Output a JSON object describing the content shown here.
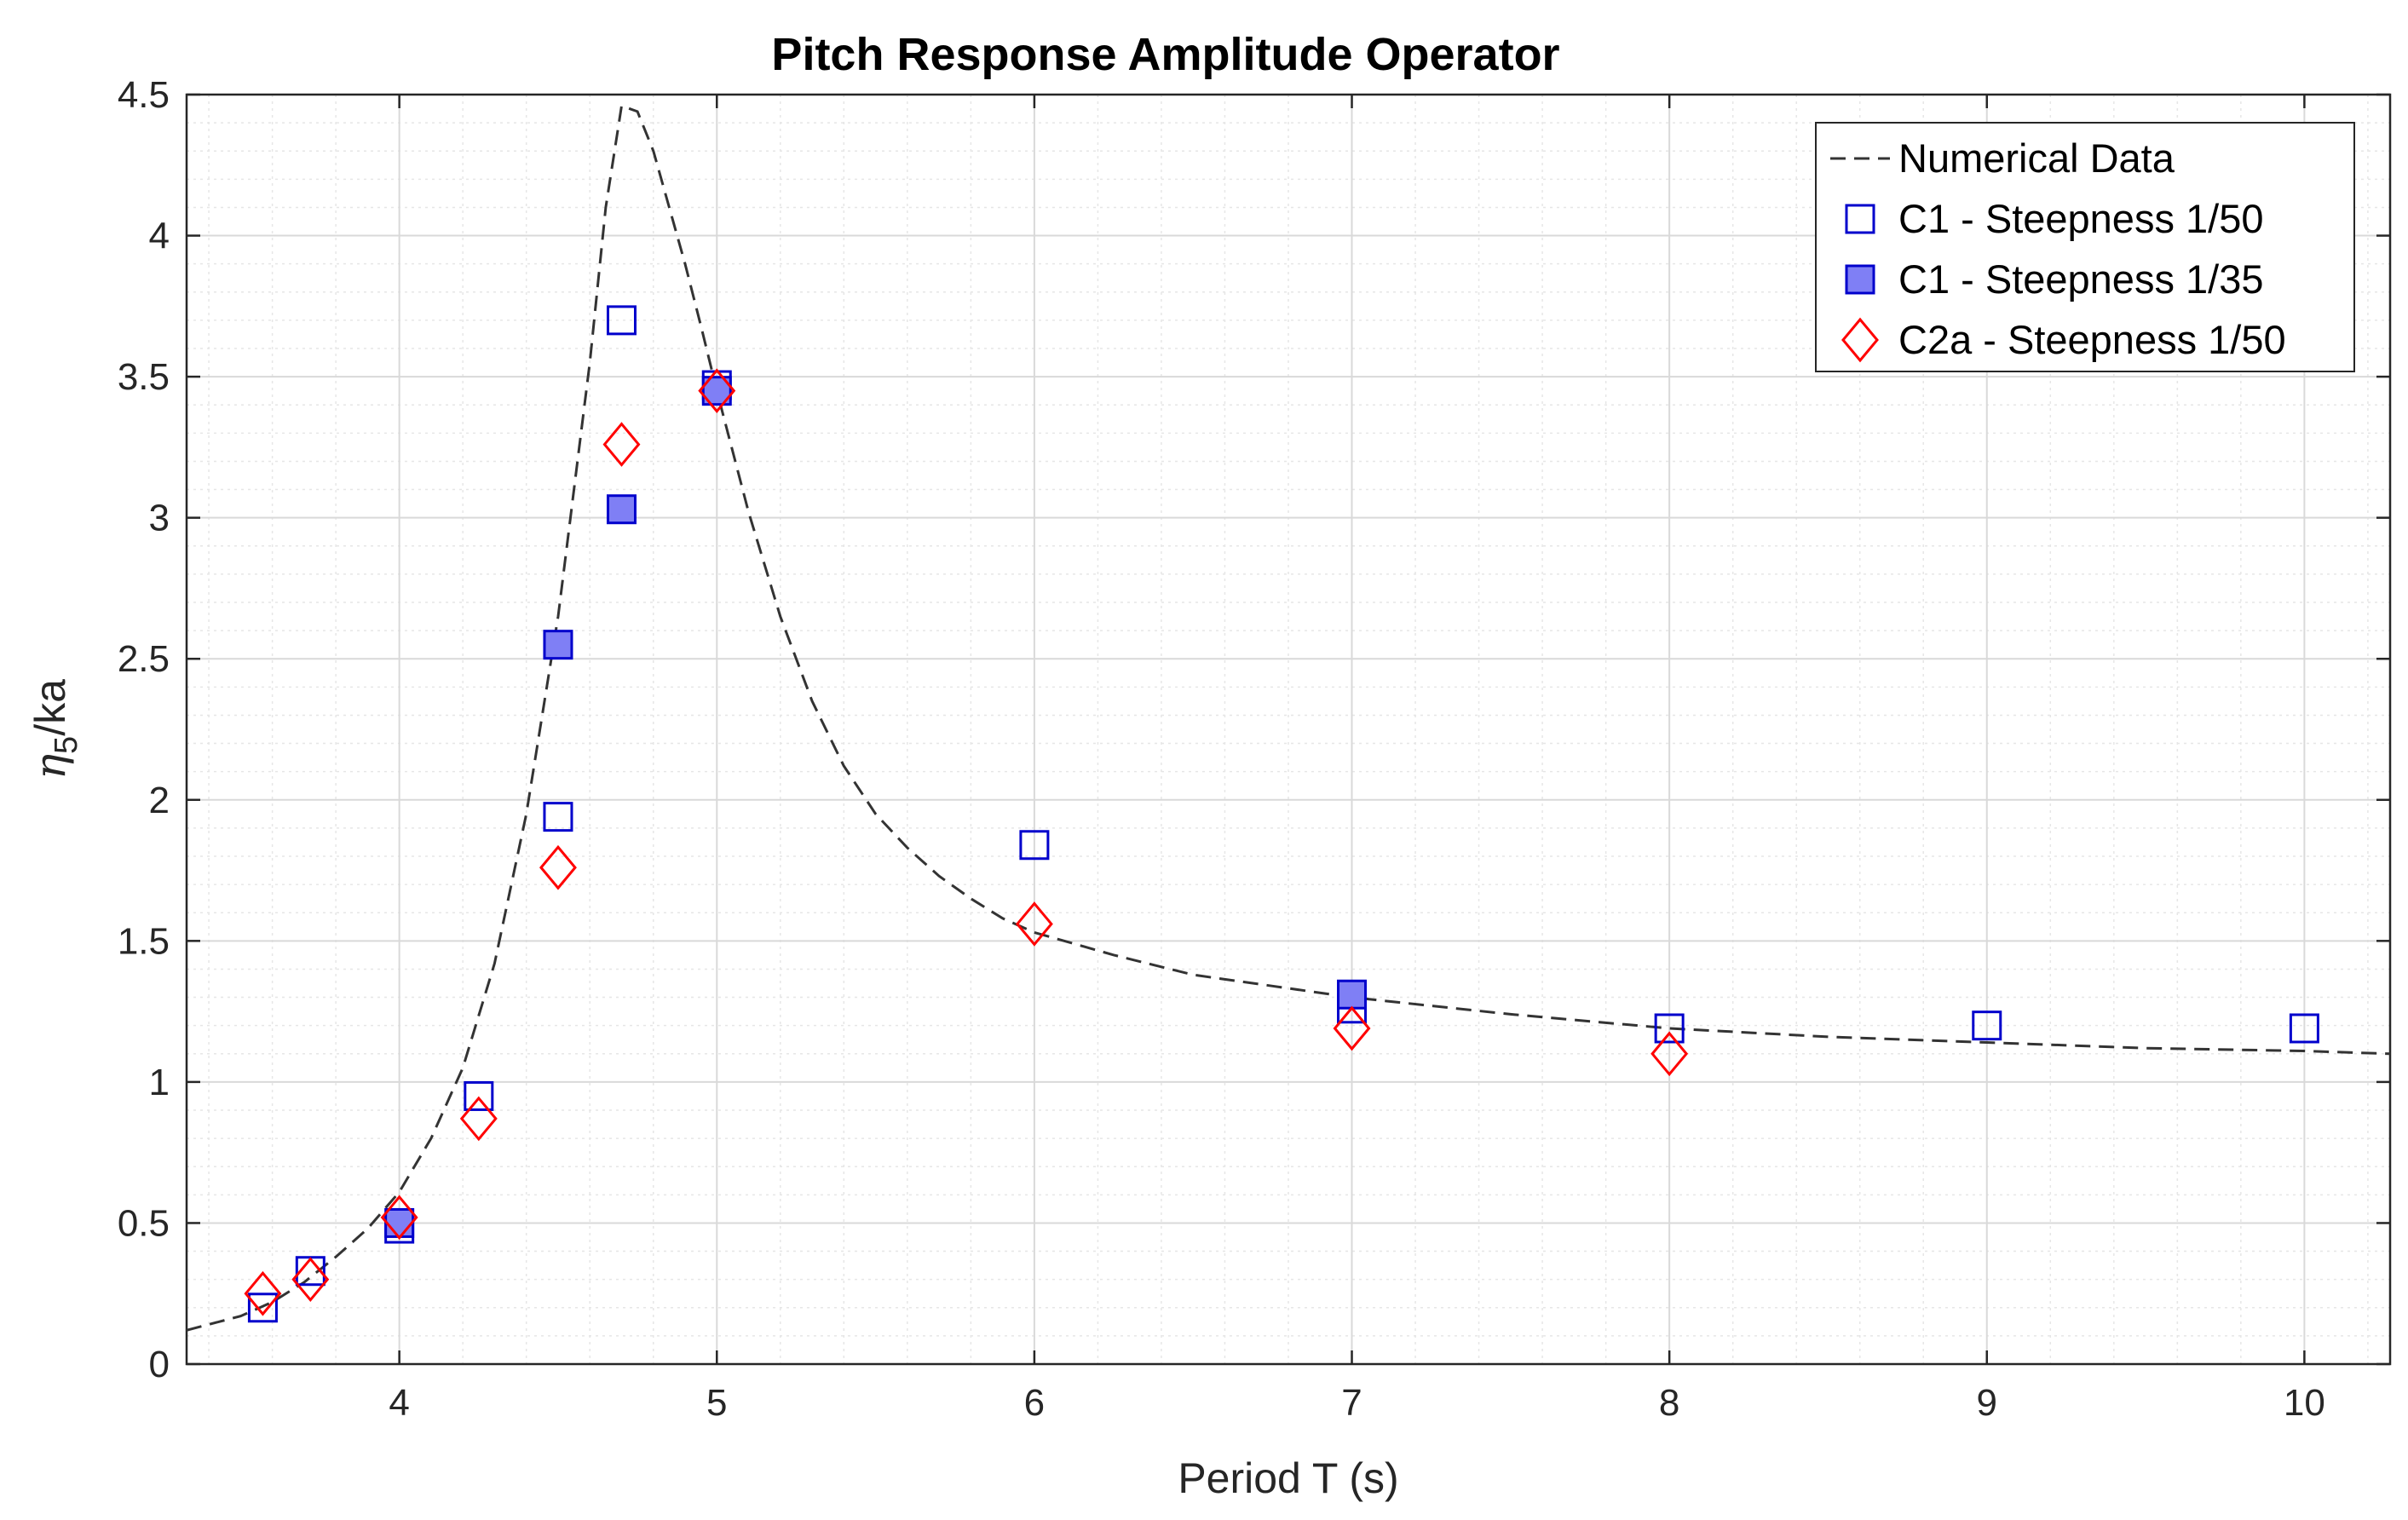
{
  "chart_data": {
    "type": "scatter",
    "title": "Pitch Response Amplitude Operator",
    "xlabel": "Period T (s)",
    "ylabel": "η5/ka",
    "ylabel_parts": {
      "symbol": "η",
      "subscript": "5",
      "rest": "/ka"
    },
    "xlim": [
      3.33,
      10.27
    ],
    "ylim": [
      0,
      4.5
    ],
    "x_ticks": [
      4,
      5,
      6,
      7,
      8,
      9,
      10
    ],
    "y_ticks": [
      0,
      0.5,
      1,
      1.5,
      2,
      2.5,
      3,
      3.5,
      4,
      4.5
    ],
    "x_tick_labels": [
      "4",
      "5",
      "6",
      "7",
      "8",
      "9",
      "10"
    ],
    "y_tick_labels": [
      "0",
      "0.5",
      "1",
      "1.5",
      "2",
      "2.5",
      "3",
      "3.5",
      "4",
      "4.5"
    ],
    "grid": true,
    "minor_grid": true,
    "legend_position": "top-right",
    "series": [
      {
        "name": "Numerical Data",
        "kind": "line",
        "style": "dashed",
        "color": "#333333",
        "x": [
          3.33,
          3.5,
          3.6,
          3.7,
          3.8,
          3.9,
          4.0,
          4.1,
          4.2,
          4.3,
          4.4,
          4.5,
          4.55,
          4.6,
          4.65,
          4.7,
          4.75,
          4.8,
          4.85,
          4.9,
          4.95,
          5.0,
          5.1,
          5.2,
          5.3,
          5.4,
          5.5,
          5.6,
          5.7,
          5.8,
          5.9,
          6.0,
          6.25,
          6.5,
          6.75,
          7.0,
          7.5,
          8.0,
          8.5,
          9.0,
          9.5,
          10.0,
          10.27
        ],
        "y": [
          0.12,
          0.17,
          0.22,
          0.29,
          0.38,
          0.48,
          0.61,
          0.8,
          1.05,
          1.42,
          1.95,
          2.65,
          3.1,
          3.55,
          4.1,
          4.46,
          4.44,
          4.3,
          4.1,
          3.9,
          3.68,
          3.45,
          3.02,
          2.65,
          2.35,
          2.12,
          1.95,
          1.83,
          1.73,
          1.65,
          1.58,
          1.53,
          1.45,
          1.38,
          1.34,
          1.3,
          1.24,
          1.19,
          1.16,
          1.14,
          1.12,
          1.11,
          1.1
        ]
      },
      {
        "name": "C1 - Steepness 1/50",
        "kind": "marker",
        "marker": "square-open",
        "color": "#0000cc",
        "x": [
          3.57,
          3.72,
          4.0,
          4.25,
          4.5,
          4.7,
          5.0,
          6.0,
          7.0,
          8.0,
          9.0,
          10.0
        ],
        "y": [
          0.2,
          0.33,
          0.48,
          0.95,
          1.94,
          3.7,
          3.47,
          1.84,
          1.26,
          1.19,
          1.2,
          1.19
        ]
      },
      {
        "name": "C1 - Steepness 1/35",
        "kind": "marker",
        "marker": "square-filled",
        "color": "#0000cc",
        "fill": "#7f7ff5",
        "x": [
          4.0,
          4.5,
          4.7,
          5.0,
          7.0
        ],
        "y": [
          0.5,
          2.55,
          3.03,
          3.45,
          1.31
        ]
      },
      {
        "name": "C2a - Steepness 1/50",
        "kind": "marker",
        "marker": "diamond-open",
        "color": "#ff0000",
        "x": [
          3.57,
          3.72,
          4.0,
          4.25,
          4.5,
          4.7,
          5.0,
          6.0,
          7.0,
          8.0
        ],
        "y": [
          0.25,
          0.3,
          0.52,
          0.87,
          1.76,
          3.26,
          3.45,
          1.56,
          1.19,
          1.1
        ]
      }
    ]
  }
}
